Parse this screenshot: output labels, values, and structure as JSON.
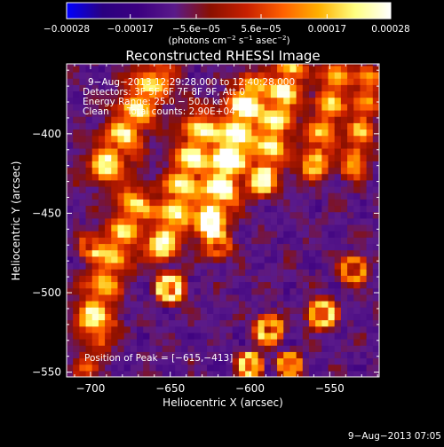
{
  "chart_data": {
    "type": "heatmap",
    "title": "Reconstructed RHESSI Image",
    "xlabel": "Heliocentric X (arcsec)",
    "ylabel": "Heliocentric Y (arcsec)",
    "xlim": [
      -715,
      -519
    ],
    "ylim": [
      -553,
      -356
    ],
    "x_ticks": [
      -700,
      -650,
      -600,
      -550
    ],
    "y_ticks": [
      -550,
      -500,
      -450,
      -400
    ],
    "colorbar": {
      "ticks": [
        {
          "value": -0.00028,
          "label": "−0.00028"
        },
        {
          "value": -0.00017,
          "label": "−0.00017"
        },
        {
          "value": -5.6e-05,
          "label": "−5.6e−05"
        },
        {
          "value": 5.6e-05,
          "label": "5.6e−05"
        },
        {
          "value": 0.00017,
          "label": "0.00017"
        },
        {
          "value": 0.00028,
          "label": "0.00028"
        }
      ],
      "min": -0.00028,
      "max": 0.00028,
      "unit_main": "(photons cm",
      "unit_cm_exp": "−2",
      "unit_s": " s",
      "unit_s_exp": "−1",
      "unit_asec": " asec",
      "unit_asec_exp": "−2",
      "unit_close": ")"
    },
    "annotations": [
      "9−Aug−2013 12:29:28.000 to 12:40:28.000",
      "Detectors: 3F 5F 6F 7F 8F 9F, Att 0",
      "Energy Range: 25.0 − 50.0 keV",
      "Clean      Total counts: 2.90E+04"
    ],
    "peak_label": "Position of Peak = [−615,−413]",
    "peak": [
      -615,
      -413
    ],
    "features": [
      {
        "type": "ridge",
        "from": [
          -700,
          -515
        ],
        "to": [
          -672,
          -442
        ],
        "width": 8,
        "amp": 0.65
      },
      {
        "type": "ridge",
        "from": [
          -690,
          -420
        ],
        "to": [
          -660,
          -365
        ],
        "width": 9,
        "amp": 0.7
      },
      {
        "type": "ridge",
        "from": [
          -655,
          -470
        ],
        "to": [
          -630,
          -395
        ],
        "width": 8,
        "amp": 0.75
      },
      {
        "type": "ridge",
        "from": [
          -625,
          -455
        ],
        "to": [
          -600,
          -375
        ],
        "width": 8,
        "amp": 0.95
      },
      {
        "type": "ridge",
        "from": [
          -592,
          -430
        ],
        "to": [
          -575,
          -360
        ],
        "width": 7,
        "amp": 0.75
      },
      {
        "type": "ridge",
        "from": [
          -560,
          -420
        ],
        "to": [
          -545,
          -360
        ],
        "width": 7,
        "amp": 0.6
      },
      {
        "type": "ridge",
        "from": [
          -535,
          -420
        ],
        "to": [
          -525,
          -365
        ],
        "width": 6,
        "amp": 0.55
      },
      {
        "type": "ridge",
        "from": [
          -705,
          -550
        ],
        "to": [
          -690,
          -520
        ],
        "width": 6,
        "amp": 0.35
      },
      {
        "type": "ring",
        "at": [
          -650,
          -497
        ],
        "r": 6,
        "width": 2.8,
        "amp": 0.65
      },
      {
        "type": "ring",
        "at": [
          -555,
          -513
        ],
        "r": 6,
        "width": 2.8,
        "amp": 0.6
      },
      {
        "type": "ring",
        "at": [
          -588,
          -523
        ],
        "r": 6,
        "width": 2.8,
        "amp": 0.55
      },
      {
        "type": "ring",
        "at": [
          -535,
          -485
        ],
        "r": 6,
        "width": 2.8,
        "amp": 0.45
      },
      {
        "type": "ring",
        "at": [
          -620,
          -470
        ],
        "r": 6,
        "width": 2.8,
        "amp": 0.35
      },
      {
        "type": "ring",
        "at": [
          -700,
          -470
        ],
        "r": 5,
        "width": 2.5,
        "amp": 0.35
      },
      {
        "type": "ring",
        "at": [
          -600,
          -545
        ],
        "r": 5,
        "width": 2.5,
        "amp": 0.6
      },
      {
        "type": "ring",
        "at": [
          -575,
          -545
        ],
        "r": 5,
        "width": 2.5,
        "amp": 0.5
      }
    ],
    "colors": {
      "background": "#000000",
      "colormap": [
        "#0000ff",
        "#2a0080",
        "#3c0080",
        "#5a1a8a",
        "#8b1000",
        "#c82000",
        "#ff6000",
        "#ffb000",
        "#ffff80",
        "#ffffff"
      ]
    }
  },
  "footer": {
    "timestamp": "9−Aug−2013 07:05"
  }
}
